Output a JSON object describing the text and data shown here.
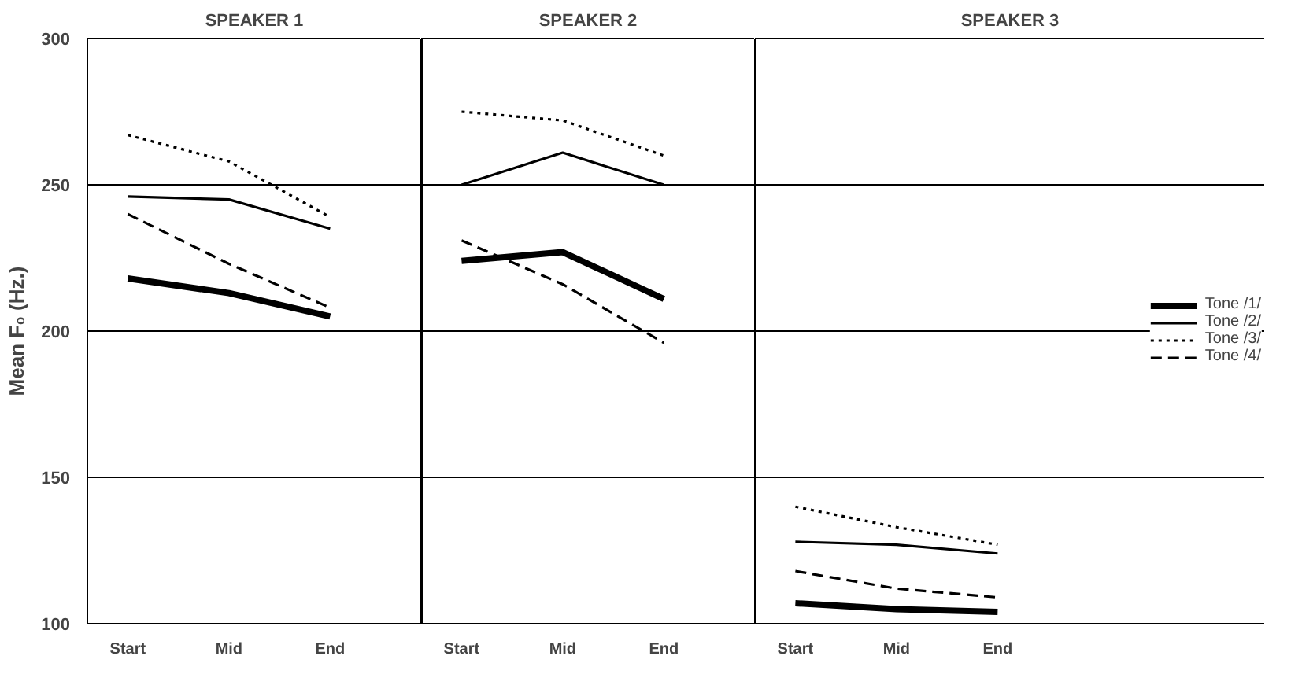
{
  "chart_data": [
    {
      "type": "line",
      "title": "SPEAKER 1",
      "ylabel": "Mean F₀ (Hz.)",
      "categories": [
        "Start",
        "Mid",
        "End"
      ],
      "ylim": [
        100,
        300
      ],
      "yticks": [
        100,
        150,
        200,
        250,
        300
      ],
      "grid": "y",
      "legend": "right",
      "series": [
        {
          "name": "Tone /1/",
          "color": "#000000",
          "line_style": "solid",
          "values": [
            218,
            213,
            205
          ]
        },
        {
          "name": "Tone /2/",
          "color": "#000000",
          "line_style": "solid",
          "values": [
            246,
            245,
            235
          ]
        },
        {
          "name": "Tone /3/",
          "color": "#000000",
          "line_style": "dotted",
          "values": [
            267,
            258,
            239
          ]
        },
        {
          "name": "Tone /4/",
          "color": "#000000",
          "line_style": "dashed",
          "values": [
            240,
            223,
            208
          ]
        }
      ]
    },
    {
      "type": "line",
      "title": "SPEAKER 2",
      "categories": [
        "Start",
        "Mid",
        "End"
      ],
      "ylim": [
        100,
        300
      ],
      "yticks": [
        100,
        150,
        200,
        250,
        300
      ],
      "grid": "y",
      "tick_labels": "x",
      "series": [
        {
          "color": "#000000",
          "line_style": "solid",
          "values": [
            224,
            227,
            211
          ]
        },
        {
          "color": "#000000",
          "line_style": "solid",
          "values": [
            250,
            261,
            250
          ]
        },
        {
          "color": "#000000",
          "line_style": "dotted",
          "values": [
            275,
            272,
            260
          ]
        },
        {
          "color": "#000000",
          "line_style": "dashed",
          "values": [
            231,
            216,
            196
          ]
        }
      ]
    },
    {
      "type": "line",
      "title": "SPEAKER 3",
      "categories": [
        "Start",
        "Mid",
        "End"
      ],
      "ylim": [
        100,
        300
      ],
      "yticks": [
        100,
        150,
        200,
        250,
        300
      ],
      "grid": "y",
      "tick_labels": "x",
      "series": [
        {
          "color": "#000000",
          "line_style": "solid",
          "values": [
            107,
            105,
            104
          ]
        },
        {
          "color": "#000000",
          "line_style": "solid",
          "values": [
            128,
            127,
            124
          ]
        },
        {
          "color": "#000000",
          "line_style": "dotted",
          "values": [
            140,
            133,
            127
          ]
        },
        {
          "color": "#000000",
          "line_style": "dashed",
          "values": [
            118,
            112,
            109
          ]
        }
      ]
    }
  ]
}
